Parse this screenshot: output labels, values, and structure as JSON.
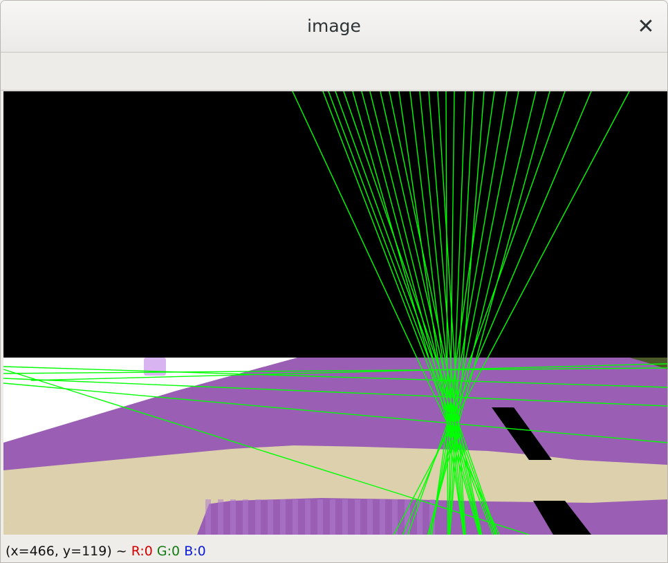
{
  "window": {
    "title": "image",
    "close_glyph": "✕"
  },
  "status": {
    "coords": "(x=466, y=119) ~ ",
    "r": "R:0",
    "g": "G:0",
    "b": "B:0"
  },
  "colors": {
    "detected_line": "#00ff00",
    "road": "#9a5fb5",
    "sidewalk": "#dcd1ac",
    "sky": "#000000",
    "building": "#ffffff",
    "lane_marking": "#000000"
  }
}
